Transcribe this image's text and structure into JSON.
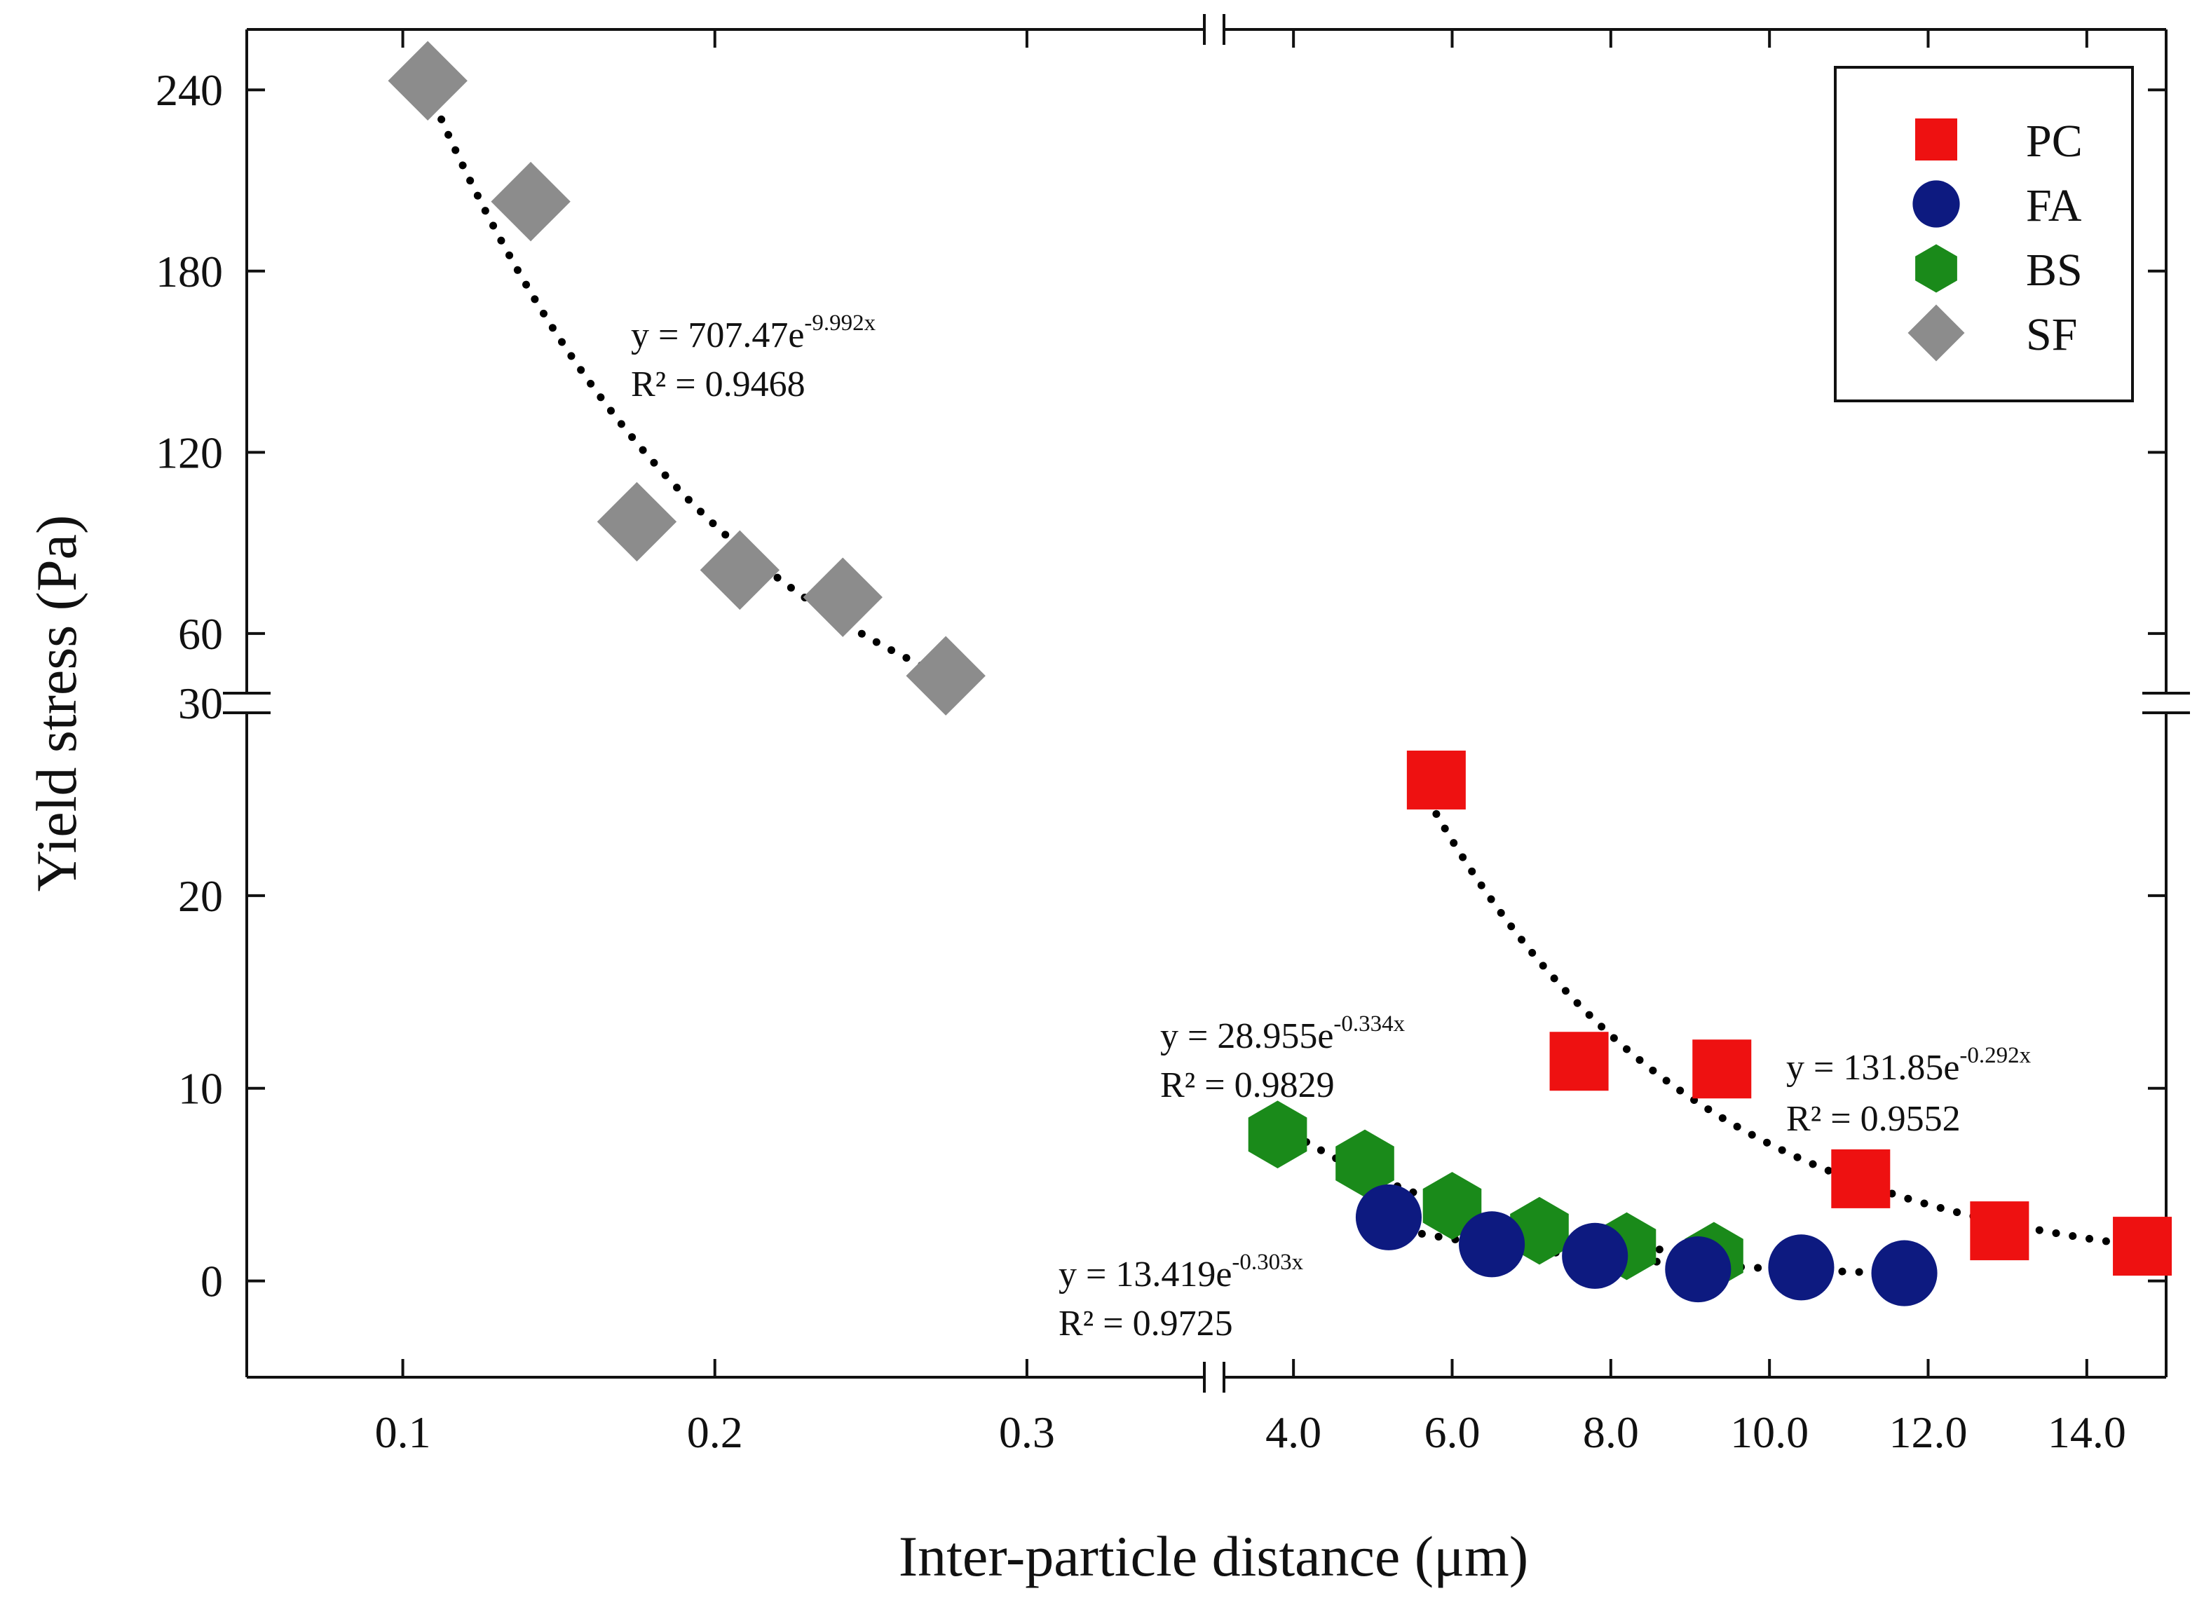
{
  "chart_data": {
    "type": "scatter",
    "title": "",
    "xlabel": "Inter-particle distance (μm)",
    "ylabel": "Yield stress (Pa)",
    "broken_axes": true,
    "x_segments": [
      {
        "range": [
          0.05,
          0.36
        ],
        "ticks": [
          0.1,
          0.2,
          0.3
        ],
        "tick_labels": [
          "0.1",
          "0.2",
          "0.3"
        ]
      },
      {
        "range": [
          3.0,
          15.0
        ],
        "ticks": [
          4,
          6,
          8,
          10,
          12,
          14
        ],
        "tick_labels": [
          "4.0",
          "6.0",
          "8.0",
          "10.0",
          "12.0",
          "14.0"
        ]
      }
    ],
    "y_segments": [
      {
        "range": [
          -5,
          30
        ],
        "ticks": [
          0,
          10,
          20,
          30
        ],
        "tick_labels": [
          "0",
          "10",
          "20",
          "30"
        ]
      },
      {
        "range": [
          37,
          260
        ],
        "ticks": [
          60,
          120,
          180,
          240
        ],
        "tick_labels": [
          "60",
          "120",
          "180",
          "240"
        ]
      }
    ],
    "legend_position": "top-right",
    "series": [
      {
        "name": "PC",
        "marker": "square",
        "color": "#ee1111",
        "x": [
          5.8,
          7.6,
          9.4,
          11.15,
          12.9,
          14.7
        ],
        "y": [
          26.0,
          11.4,
          11.0,
          5.3,
          2.6,
          1.8
        ],
        "fit": {
          "a": 131.85,
          "b": -0.292,
          "x_range": [
            5.8,
            14.7
          ],
          "eq_main": "y = 131.85e",
          "eq_exp": "-0.292x",
          "r2": "R² = 0.9552"
        }
      },
      {
        "name": "FA",
        "marker": "circle",
        "color": "#0d1a80",
        "x": [
          5.2,
          6.5,
          7.8,
          9.1,
          10.4,
          11.7
        ],
        "y": [
          3.3,
          1.9,
          1.3,
          0.6,
          0.7,
          0.4
        ],
        "fit": {
          "a": 13.419,
          "b": -0.303,
          "x_range": [
            5.2,
            11.7
          ],
          "eq_main": "y = 13.419e",
          "eq_exp": "-0.303x",
          "r2": "R² = 0.9725"
        }
      },
      {
        "name": "BS",
        "marker": "hexagon",
        "color": "#1a8a1a",
        "x": [
          3.8,
          4.9,
          6.0,
          7.1,
          8.2,
          9.3
        ],
        "y": [
          7.6,
          6.1,
          3.9,
          2.6,
          1.8,
          1.3
        ],
        "fit": {
          "a": 28.955,
          "b": -0.334,
          "x_range": [
            3.8,
            9.3
          ],
          "eq_main": "y = 28.955e",
          "eq_exp": "-0.334x",
          "r2": "R² = 0.9829"
        }
      },
      {
        "name": "SF",
        "marker": "diamond",
        "color": "#8c8c8c",
        "x": [
          0.108,
          0.141,
          0.175,
          0.208,
          0.241,
          0.274
        ],
        "y": [
          243,
          203,
          97,
          81,
          72,
          46
        ],
        "fit": {
          "a": 707.47,
          "b": -9.992,
          "x_range": [
            0.108,
            0.274
          ],
          "eq_main": "y = 707.47e",
          "eq_exp": "-9.992x",
          "r2": "R² = 0.9468"
        }
      }
    ]
  }
}
